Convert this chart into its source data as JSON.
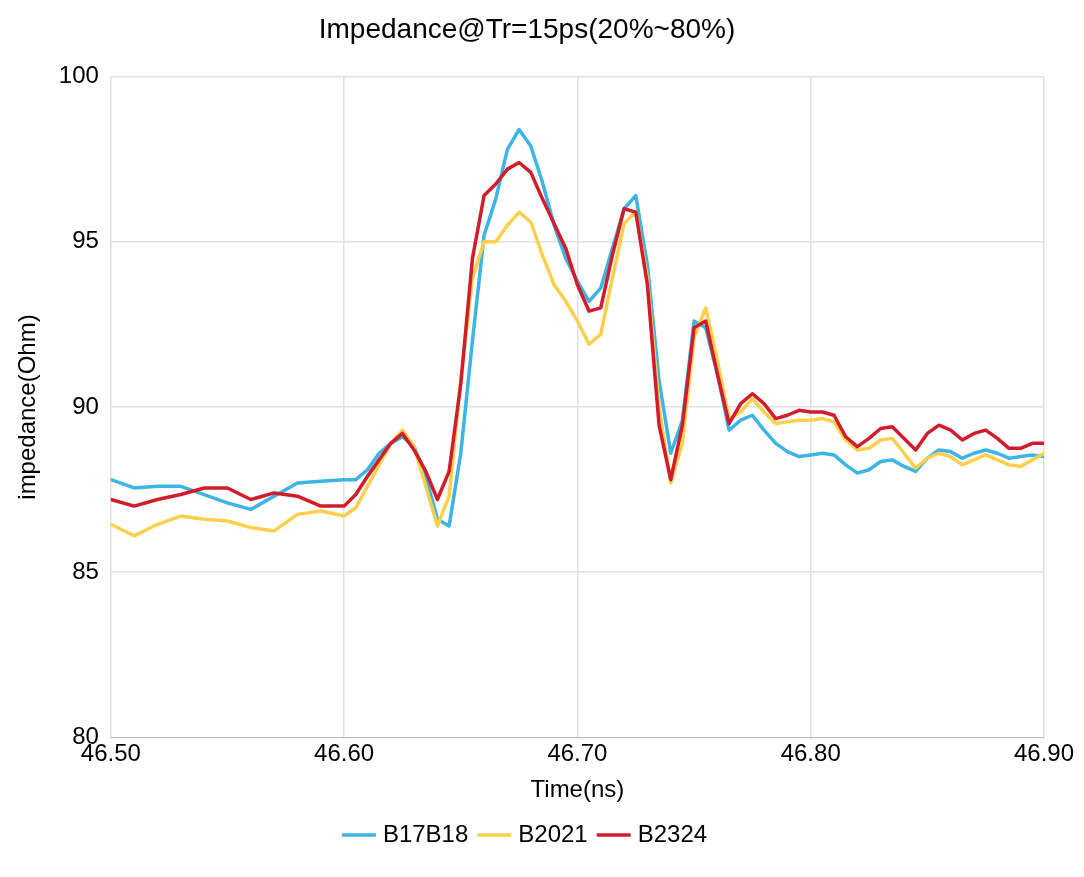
{
  "chart_data": {
    "type": "line",
    "title": "Impedance@Tr=15ps(20%~80%)",
    "xlabel": "Time(ns)",
    "ylabel": "impedance(Ohm)",
    "x": [
      46.5,
      46.51,
      46.52,
      46.53,
      46.54,
      46.55,
      46.56,
      46.57,
      46.58,
      46.59,
      46.6,
      46.605,
      46.61,
      46.615,
      46.62,
      46.625,
      46.63,
      46.635,
      46.64,
      46.645,
      46.65,
      46.655,
      46.66,
      46.665,
      46.67,
      46.675,
      46.68,
      46.685,
      46.69,
      46.695,
      46.7,
      46.705,
      46.71,
      46.715,
      46.72,
      46.725,
      46.73,
      46.735,
      46.74,
      46.745,
      46.75,
      46.755,
      46.76,
      46.765,
      46.77,
      46.775,
      46.78,
      46.785,
      46.79,
      46.795,
      46.8,
      46.805,
      46.81,
      46.815,
      46.82,
      46.825,
      46.83,
      46.835,
      46.84,
      46.845,
      46.85,
      46.855,
      46.86,
      46.865,
      46.87,
      46.875,
      46.88,
      46.885,
      46.89,
      46.895,
      46.9
    ],
    "series": [
      {
        "name": "B17B18",
        "color": "#3cb4e5",
        "values": [
          87.8,
          87.55,
          87.6,
          87.6,
          87.35,
          87.1,
          86.9,
          87.3,
          87.7,
          87.75,
          87.8,
          87.8,
          88.1,
          88.6,
          88.9,
          89.1,
          88.8,
          87.9,
          86.6,
          86.4,
          88.6,
          92.0,
          95.2,
          96.3,
          97.8,
          98.4,
          97.9,
          96.8,
          95.5,
          94.5,
          93.8,
          93.2,
          93.6,
          94.8,
          96.0,
          96.4,
          94.3,
          90.8,
          88.6,
          89.6,
          92.6,
          92.4,
          91.0,
          89.3,
          89.6,
          89.75,
          89.3,
          88.9,
          88.65,
          88.5,
          88.55,
          88.6,
          88.55,
          88.25,
          88.0,
          88.1,
          88.35,
          88.4,
          88.2,
          88.05,
          88.45,
          88.7,
          88.65,
          88.45,
          88.6,
          88.7,
          88.6,
          88.45,
          88.5,
          88.55,
          88.5
        ]
      },
      {
        "name": "B2021",
        "color": "#fcd04d",
        "values": [
          86.45,
          86.1,
          86.45,
          86.7,
          86.6,
          86.55,
          86.35,
          86.25,
          86.75,
          86.85,
          86.7,
          86.95,
          87.6,
          88.25,
          88.9,
          89.3,
          88.8,
          87.6,
          86.4,
          87.3,
          90.8,
          93.9,
          95.0,
          95.0,
          95.5,
          95.9,
          95.6,
          94.6,
          93.7,
          93.2,
          92.6,
          91.9,
          92.2,
          93.9,
          95.55,
          95.9,
          93.9,
          90.0,
          87.7,
          88.9,
          92.1,
          93.0,
          91.4,
          89.65,
          89.85,
          90.25,
          89.85,
          89.5,
          89.55,
          89.6,
          89.6,
          89.65,
          89.55,
          89.0,
          88.7,
          88.75,
          89.0,
          89.05,
          88.6,
          88.15,
          88.45,
          88.6,
          88.5,
          88.25,
          88.4,
          88.55,
          88.4,
          88.25,
          88.2,
          88.4,
          88.6
        ]
      },
      {
        "name": "B2324",
        "color": "#d01c2b",
        "values": [
          87.2,
          87.0,
          87.2,
          87.35,
          87.55,
          87.55,
          87.2,
          87.4,
          87.3,
          87.0,
          87.0,
          87.35,
          87.9,
          88.4,
          88.9,
          89.2,
          88.7,
          88.05,
          87.2,
          88.05,
          90.7,
          94.5,
          96.4,
          96.75,
          97.2,
          97.4,
          97.1,
          96.3,
          95.55,
          94.8,
          93.7,
          92.9,
          93.0,
          94.6,
          96.0,
          95.9,
          93.7,
          89.45,
          87.8,
          89.45,
          92.4,
          92.6,
          91.0,
          89.5,
          90.1,
          90.4,
          90.1,
          89.65,
          89.75,
          89.9,
          89.85,
          89.85,
          89.75,
          89.1,
          88.8,
          89.05,
          89.35,
          89.4,
          89.05,
          88.7,
          89.2,
          89.45,
          89.3,
          89.0,
          89.2,
          89.3,
          89.05,
          88.75,
          88.75,
          88.9,
          88.9
        ]
      }
    ],
    "xlim": [
      46.5,
      46.9
    ],
    "xticks": [
      {
        "value": 46.5,
        "label": "46.50"
      },
      {
        "value": 46.6,
        "label": "46.60"
      },
      {
        "value": 46.7,
        "label": "46.70"
      },
      {
        "value": 46.8,
        "label": "46.80"
      },
      {
        "value": 46.9,
        "label": "46.90"
      }
    ],
    "ylim": [
      80,
      100
    ],
    "yticks": [
      80,
      85,
      90,
      95,
      100
    ],
    "grid": true,
    "legend": "bottom",
    "marker": "none",
    "line_style": "solid"
  }
}
